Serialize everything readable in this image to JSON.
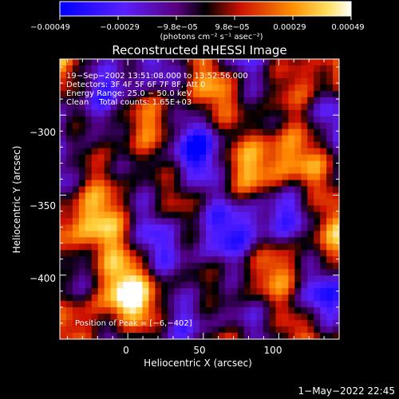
{
  "chart_data": {
    "type": "heatmap",
    "title": "Reconstructed RHESSI Image",
    "xlabel": "Heliocentric X (arcsec)",
    "ylabel": "Heliocentric Y (arcsec)",
    "xlim": [
      -45,
      140
    ],
    "ylim": [
      -440,
      -265
    ],
    "x_ticks": [
      0,
      50,
      100
    ],
    "x_tick_labels": [
      "0",
      "50",
      "100"
    ],
    "y_ticks": [
      -300,
      -350,
      -400
    ],
    "y_tick_labels": [
      "−300",
      "−350",
      "−400"
    ],
    "colorbar": {
      "min": -0.00049,
      "max": 0.00049,
      "tick_labels": [
        "−0.00049",
        "−0.00029",
        "−9.8e−05",
        "9.8e−05",
        "0.00029",
        "0.00049"
      ],
      "unit_line": "(photons cm⁻² s⁻¹ asec⁻²)",
      "colors": [
        "#0000ff",
        "#7a2cff",
        "#000000",
        "#ff3000",
        "#ffb000",
        "#ffffff"
      ]
    },
    "annotations": [
      "19−Sep−2002 13:51:08.000 to 13:52:56.000",
      "Detectors: 3F 4F 5F 6F 7F 8F, Att 0",
      "Energy Range: 25.0 − 50.0 keV",
      "Clean    Total counts: 1.65E+03"
    ],
    "peak_label": "Position of Peak = [−6,−402]",
    "timestamp": "1−May−2022 22:45"
  }
}
